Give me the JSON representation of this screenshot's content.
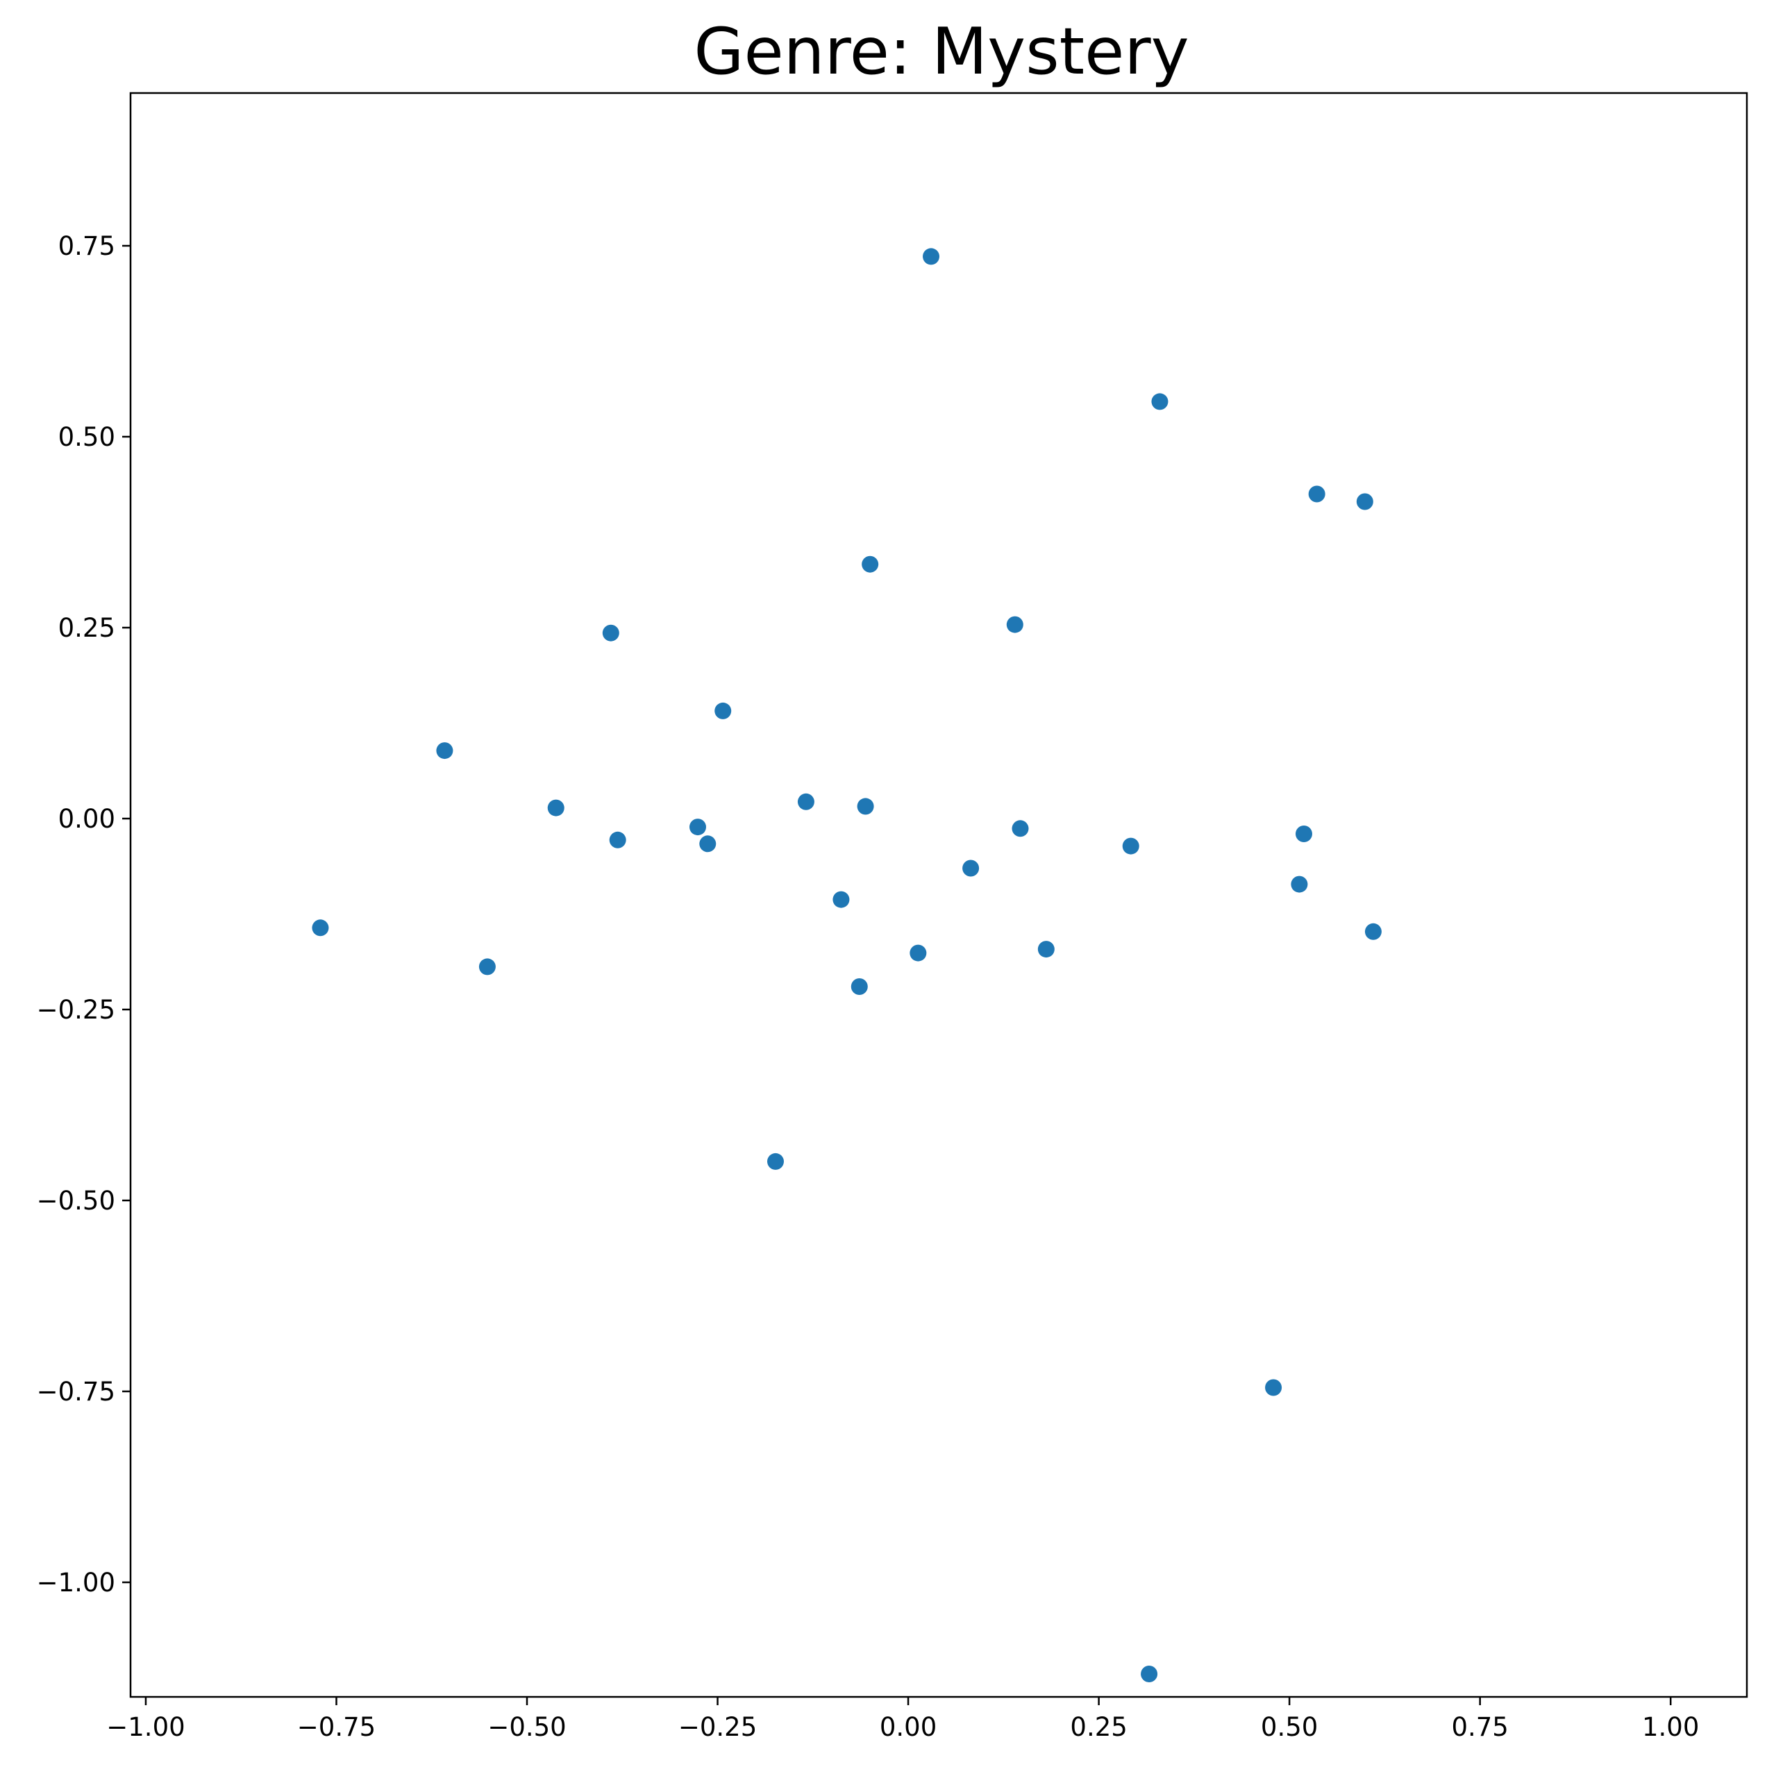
{
  "chart_data": {
    "type": "scatter",
    "title": "Genre: Mystery",
    "xlabel": "",
    "ylabel": "",
    "xlim": [
      -1.02,
      1.1
    ],
    "ylim": [
      -1.15,
      0.95
    ],
    "xticks": [
      -1.0,
      -0.75,
      -0.5,
      -0.25,
      0.0,
      0.25,
      0.5,
      0.75,
      1.0
    ],
    "yticks": [
      0.75,
      0.5,
      0.25,
      0.0,
      -0.25,
      -0.5,
      -0.75,
      -1.0
    ],
    "xtick_labels": [
      "−1.00",
      "−0.75",
      "−0.50",
      "−0.25",
      "0.00",
      "0.25",
      "0.50",
      "0.75",
      "1.00"
    ],
    "ytick_labels": [
      "0.75",
      "0.50",
      "0.25",
      "0.00",
      "−0.25",
      "−0.50",
      "−0.75",
      "−1.00"
    ],
    "grid": false,
    "color": "#1f77b4",
    "points": [
      {
        "x": 0.03,
        "y": 0.736
      },
      {
        "x": 0.33,
        "y": 0.546
      },
      {
        "x": 0.536,
        "y": 0.425
      },
      {
        "x": 0.599,
        "y": 0.415
      },
      {
        "x": -0.05,
        "y": 0.333
      },
      {
        "x": 0.14,
        "y": 0.254
      },
      {
        "x": -0.39,
        "y": 0.243
      },
      {
        "x": -0.243,
        "y": 0.141
      },
      {
        "x": -0.608,
        "y": 0.089
      },
      {
        "x": -0.462,
        "y": 0.014
      },
      {
        "x": -0.134,
        "y": 0.022
      },
      {
        "x": -0.056,
        "y": 0.016
      },
      {
        "x": -0.276,
        "y": -0.011
      },
      {
        "x": -0.381,
        "y": -0.028
      },
      {
        "x": -0.263,
        "y": -0.033
      },
      {
        "x": 0.147,
        "y": -0.013
      },
      {
        "x": 0.292,
        "y": -0.036
      },
      {
        "x": 0.519,
        "y": -0.02
      },
      {
        "x": 0.082,
        "y": -0.065
      },
      {
        "x": -0.088,
        "y": -0.106
      },
      {
        "x": 0.513,
        "y": -0.086
      },
      {
        "x": 0.61,
        "y": -0.148
      },
      {
        "x": -0.771,
        "y": -0.143
      },
      {
        "x": -0.552,
        "y": -0.194
      },
      {
        "x": 0.181,
        "y": -0.171
      },
      {
        "x": 0.013,
        "y": -0.176
      },
      {
        "x": -0.064,
        "y": -0.22
      },
      {
        "x": -0.174,
        "y": -0.449
      },
      {
        "x": 0.479,
        "y": -0.745
      },
      {
        "x": 0.316,
        "y": -1.12
      }
    ]
  }
}
